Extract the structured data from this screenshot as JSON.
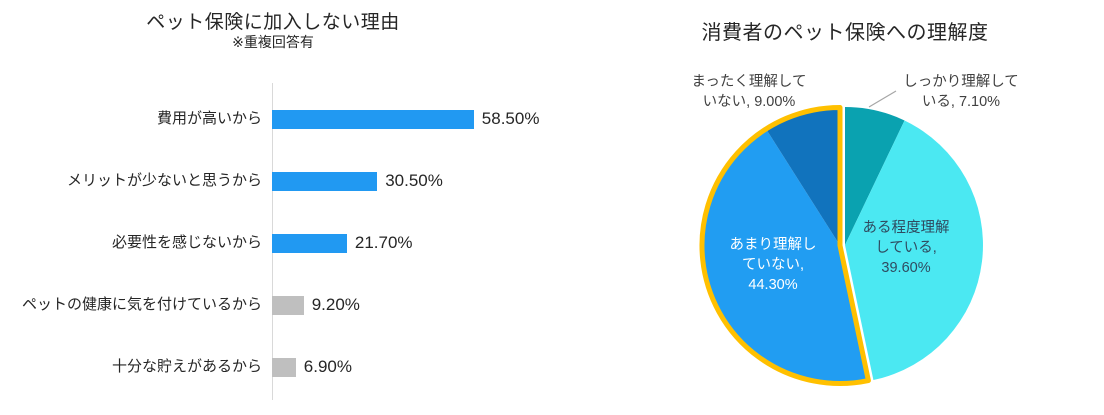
{
  "page": {
    "background": "#FFFFFF"
  },
  "chart_data": [
    {
      "type": "bar",
      "orientation": "horizontal",
      "title": "ペット保険に加入しない理由",
      "subtitle": "※重複回答有",
      "categories": [
        "費用が高いから",
        "メリットが少ないと思うから",
        "必要性を感じないから",
        "ペットの健康に気を付けているから",
        "十分な貯えがあるから"
      ],
      "values": [
        58.5,
        30.5,
        21.7,
        9.2,
        6.9
      ],
      "value_labels": [
        "58.50%",
        "30.50%",
        "21.70%",
        "9.20%",
        "6.90%"
      ],
      "bar_colors": [
        "#2199F2",
        "#2199F2",
        "#2199F2",
        "#BFBFBF",
        "#BFBFBF"
      ],
      "axis_line_color": "#D9D9D9",
      "grid": false,
      "legend": false
    },
    {
      "type": "pie",
      "title": "消費者のペット保険への理解度",
      "categories": [
        "しっかり理解している",
        "ある程度理解している",
        "あまり理解していない",
        "まったく理解していない"
      ],
      "values": [
        7.1,
        39.6,
        44.3,
        9.0
      ],
      "slice_colors": [
        "#0AA2B0",
        "#4BE8F2",
        "#219DF2",
        "#1173BD"
      ],
      "start": "12-o'clock, clockwise",
      "data_labels": [
        "しっかり理解して\nいる, 7.10%",
        "ある程度理解\nしている,\n39.60%",
        "あまり理解し\nていない,\n44.30%",
        "まったく理解して\nいない, 9.00%"
      ],
      "highlight": {
        "slices": [
          "あまり理解していない",
          "まったく理解していない"
        ],
        "outline_color": "#FFC000"
      },
      "leader_line_color": "#A6A6A6",
      "legend": false
    }
  ]
}
